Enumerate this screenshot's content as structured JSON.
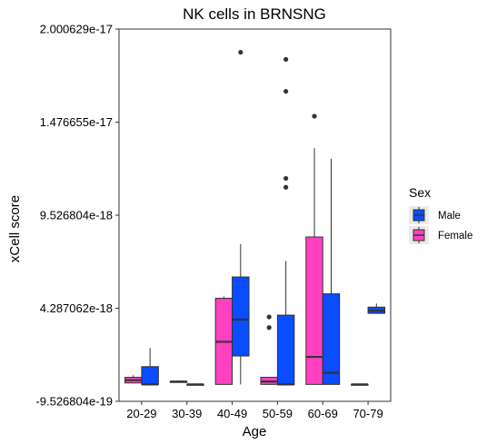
{
  "chart_data": {
    "type": "boxplot",
    "title": "NK cells in BRNSNG",
    "xlabel": "Age",
    "ylabel": "xCell score",
    "categories": [
      "20-29",
      "30-39",
      "40-49",
      "50-59",
      "60-69",
      "70-79"
    ],
    "y_ticks": [
      {
        "value": -9.526804e-19,
        "label": "-9.526804e-19"
      },
      {
        "value": 4.287062e-18,
        "label": "4.287062e-18"
      },
      {
        "value": 9.526804e-18,
        "label": "9.526804e-18"
      },
      {
        "value": 1.476655e-17,
        "label": "1.476655e-17"
      },
      {
        "value": 2.000629e-17,
        "label": "2.000629e-17"
      }
    ],
    "ylim": [
      -9.526804e-19,
      2.000629e-17
    ],
    "grid": false,
    "legend": {
      "title": "Sex",
      "position": "right",
      "entries": [
        {
          "name": "Male",
          "color": "#0a4cff"
        },
        {
          "name": "Female",
          "color": "#ff40c0"
        }
      ]
    },
    "series": [
      {
        "name": "Female",
        "color": "#ff40c0",
        "boxes": [
          {
            "category": "20-29",
            "whisker_low": 8e-20,
            "q1": 8e-20,
            "median": 2.4e-19,
            "q3": 4e-19,
            "whisker_high": 5.2e-19,
            "outliers": []
          },
          {
            "category": "30-39",
            "whisker_low": 1.6e-19,
            "q1": 1.6e-19,
            "median": 1.6e-19,
            "q3": 1.6e-19,
            "whisker_high": 1.6e-19,
            "outliers": []
          },
          {
            "category": "40-49",
            "whisker_low": 0.0,
            "q1": 0.0,
            "median": 2.4e-18,
            "q3": 4.85e-18,
            "whisker_high": 4.95e-18,
            "outliers": []
          },
          {
            "category": "50-59",
            "whisker_low": 0.0,
            "q1": 0.0,
            "median": 1.6e-19,
            "q3": 4e-19,
            "whisker_high": 4e-19,
            "outliers": [
              3.8e-18,
              3.2e-18
            ]
          },
          {
            "category": "60-69",
            "whisker_low": 0.0,
            "q1": 0.0,
            "median": 1.55e-18,
            "q3": 8.3e-18,
            "whisker_high": 1.33e-17,
            "outliers": [
              1.51e-17
            ]
          },
          {
            "category": "70-79",
            "whisker_low": 0.0,
            "q1": 0.0,
            "median": 0.0,
            "q3": 0.0,
            "whisker_high": 0.0,
            "outliers": []
          }
        ]
      },
      {
        "name": "Male",
        "color": "#0a4cff",
        "boxes": [
          {
            "category": "20-29",
            "whisker_low": 0.0,
            "q1": 0.0,
            "median": 0.0,
            "q3": 1e-18,
            "whisker_high": 2.05e-18,
            "outliers": []
          },
          {
            "category": "30-39",
            "whisker_low": 0.0,
            "q1": 0.0,
            "median": 0.0,
            "q3": 0.0,
            "whisker_high": 0.0,
            "outliers": []
          },
          {
            "category": "40-49",
            "whisker_low": 0.0,
            "q1": 1.6e-18,
            "median": 3.65e-18,
            "q3": 6.05e-18,
            "whisker_high": 7.9e-18,
            "outliers": [
              1.87e-17
            ]
          },
          {
            "category": "50-59",
            "whisker_low": 0.0,
            "q1": 0.0,
            "median": 0.0,
            "q3": 3.9e-18,
            "whisker_high": 6.95e-18,
            "outliers": [
              1.83e-17,
              1.65e-17,
              1.16e-17,
              1.11e-17
            ]
          },
          {
            "category": "60-69",
            "whisker_low": 0.0,
            "q1": 0.0,
            "median": 6.5e-19,
            "q3": 5.1e-18,
            "whisker_high": 1.27e-17,
            "outliers": []
          },
          {
            "category": "70-79",
            "whisker_low": 4e-18,
            "q1": 4e-18,
            "median": 4.15e-18,
            "q3": 4.35e-18,
            "whisker_high": 4.55e-18,
            "outliers": []
          }
        ]
      }
    ]
  }
}
